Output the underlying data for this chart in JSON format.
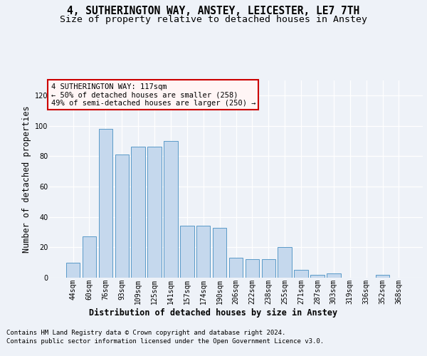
{
  "title_line1": "4, SUTHERINGTON WAY, ANSTEY, LEICESTER, LE7 7TH",
  "title_line2": "Size of property relative to detached houses in Anstey",
  "xlabel": "Distribution of detached houses by size in Anstey",
  "ylabel": "Number of detached properties",
  "categories": [
    "44sqm",
    "60sqm",
    "76sqm",
    "93sqm",
    "109sqm",
    "125sqm",
    "141sqm",
    "157sqm",
    "174sqm",
    "190sqm",
    "206sqm",
    "222sqm",
    "238sqm",
    "255sqm",
    "271sqm",
    "287sqm",
    "303sqm",
    "319sqm",
    "336sqm",
    "352sqm",
    "368sqm"
  ],
  "values": [
    10,
    27,
    98,
    81,
    86,
    86,
    90,
    34,
    34,
    33,
    13,
    12,
    12,
    20,
    5,
    2,
    3,
    0,
    0,
    2,
    0
  ],
  "bar_color": "#c5d8ed",
  "bar_edge_color": "#5a9ac8",
  "ylim": [
    0,
    130
  ],
  "yticks": [
    0,
    20,
    40,
    60,
    80,
    100,
    120
  ],
  "annotation_text": "4 SUTHERINGTON WAY: 117sqm\n← 50% of detached houses are smaller (258)\n49% of semi-detached houses are larger (250) →",
  "annotation_box_facecolor": "#fff5f5",
  "annotation_box_edgecolor": "#cc0000",
  "footer_line1": "Contains HM Land Registry data © Crown copyright and database right 2024.",
  "footer_line2": "Contains public sector information licensed under the Open Government Licence v3.0.",
  "background_color": "#eef2f8",
  "grid_color": "#ffffff",
  "title_fontsize": 10.5,
  "subtitle_fontsize": 9.5,
  "ylabel_fontsize": 8.5,
  "xlabel_fontsize": 8.5,
  "tick_fontsize": 7,
  "annotation_fontsize": 7.5,
  "footer_fontsize": 6.5
}
